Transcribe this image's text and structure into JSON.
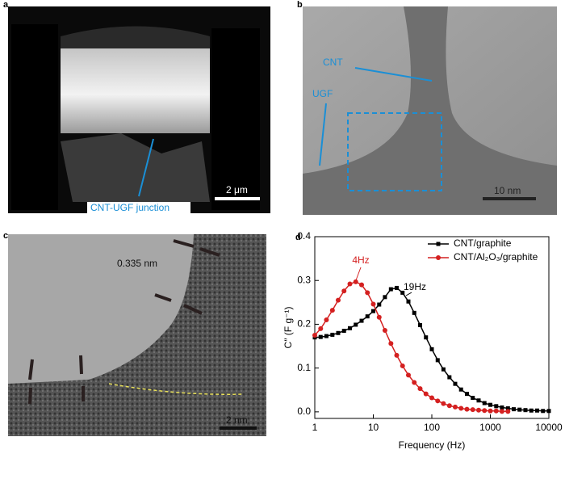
{
  "panels": [
    {
      "label": "a",
      "annotations": [
        "2 μm",
        "CNT-UGF junction"
      ]
    },
    {
      "label": "b",
      "annotations": [
        "CNT",
        "UGF",
        "10 nm"
      ]
    },
    {
      "label": "c",
      "annotations": [
        "0.335 nm",
        "2 nm"
      ]
    },
    {
      "label": "d"
    }
  ],
  "chart_data": {
    "type": "line",
    "xlabel": "Frequency (Hz)",
    "ylabel": "C″ (F g⁻¹)",
    "xscale": "log",
    "xlim": [
      1,
      10000
    ],
    "xticks": [
      1,
      10,
      100,
      1000,
      10000
    ],
    "ylim": [
      -0.015,
      0.4
    ],
    "yticks": [
      {
        "value": 0,
        "label": "0.0"
      },
      0.1,
      0.2,
      0.3,
      0.4
    ],
    "legend": "upper right",
    "x": [
      1,
      1.26,
      1.58,
      2,
      2.51,
      3.16,
      3.98,
      5.01,
      6.31,
      7.94,
      10,
      12.6,
      15.8,
      20,
      25.1,
      31.6,
      39.8,
      50.1,
      63.1,
      79.4,
      100,
      126,
      158,
      200,
      251,
      316,
      398,
      501,
      631,
      794,
      1000,
      1260,
      1580,
      2000,
      2510,
      3160,
      3980,
      5010,
      6310,
      7940,
      10000
    ],
    "series": [
      {
        "name": "CNT/graphite",
        "color": "#000000",
        "marker": "square",
        "values": [
          0.17,
          0.171,
          0.173,
          0.176,
          0.18,
          0.185,
          0.191,
          0.199,
          0.208,
          0.218,
          0.23,
          0.245,
          0.262,
          0.28,
          0.283,
          0.272,
          0.252,
          0.226,
          0.198,
          0.17,
          0.143,
          0.118,
          0.097,
          0.079,
          0.064,
          0.051,
          0.041,
          0.032,
          0.026,
          0.02,
          0.016,
          0.013,
          0.01,
          0.008,
          0.006,
          0.005,
          0.004,
          0.003,
          0.003,
          0.002,
          0.002
        ]
      },
      {
        "name": "CNT/Al₂O₃/graphite",
        "color": "#d42020",
        "marker": "circle",
        "values": [
          0.175,
          0.19,
          0.21,
          0.232,
          0.255,
          0.276,
          0.292,
          0.297,
          0.29,
          0.272,
          0.246,
          0.216,
          0.186,
          0.156,
          0.129,
          0.105,
          0.084,
          0.067,
          0.053,
          0.041,
          0.032,
          0.025,
          0.019,
          0.014,
          0.011,
          0.008,
          0.006,
          0.005,
          0.004,
          0.003,
          0.002,
          0.002,
          0.001,
          0.001,
          null,
          null,
          null,
          null,
          null,
          null,
          null
        ]
      }
    ],
    "annotations": [
      {
        "text": "4Hz",
        "color": "#d42020"
      },
      {
        "text": "19Hz",
        "color": "#000000"
      }
    ]
  }
}
